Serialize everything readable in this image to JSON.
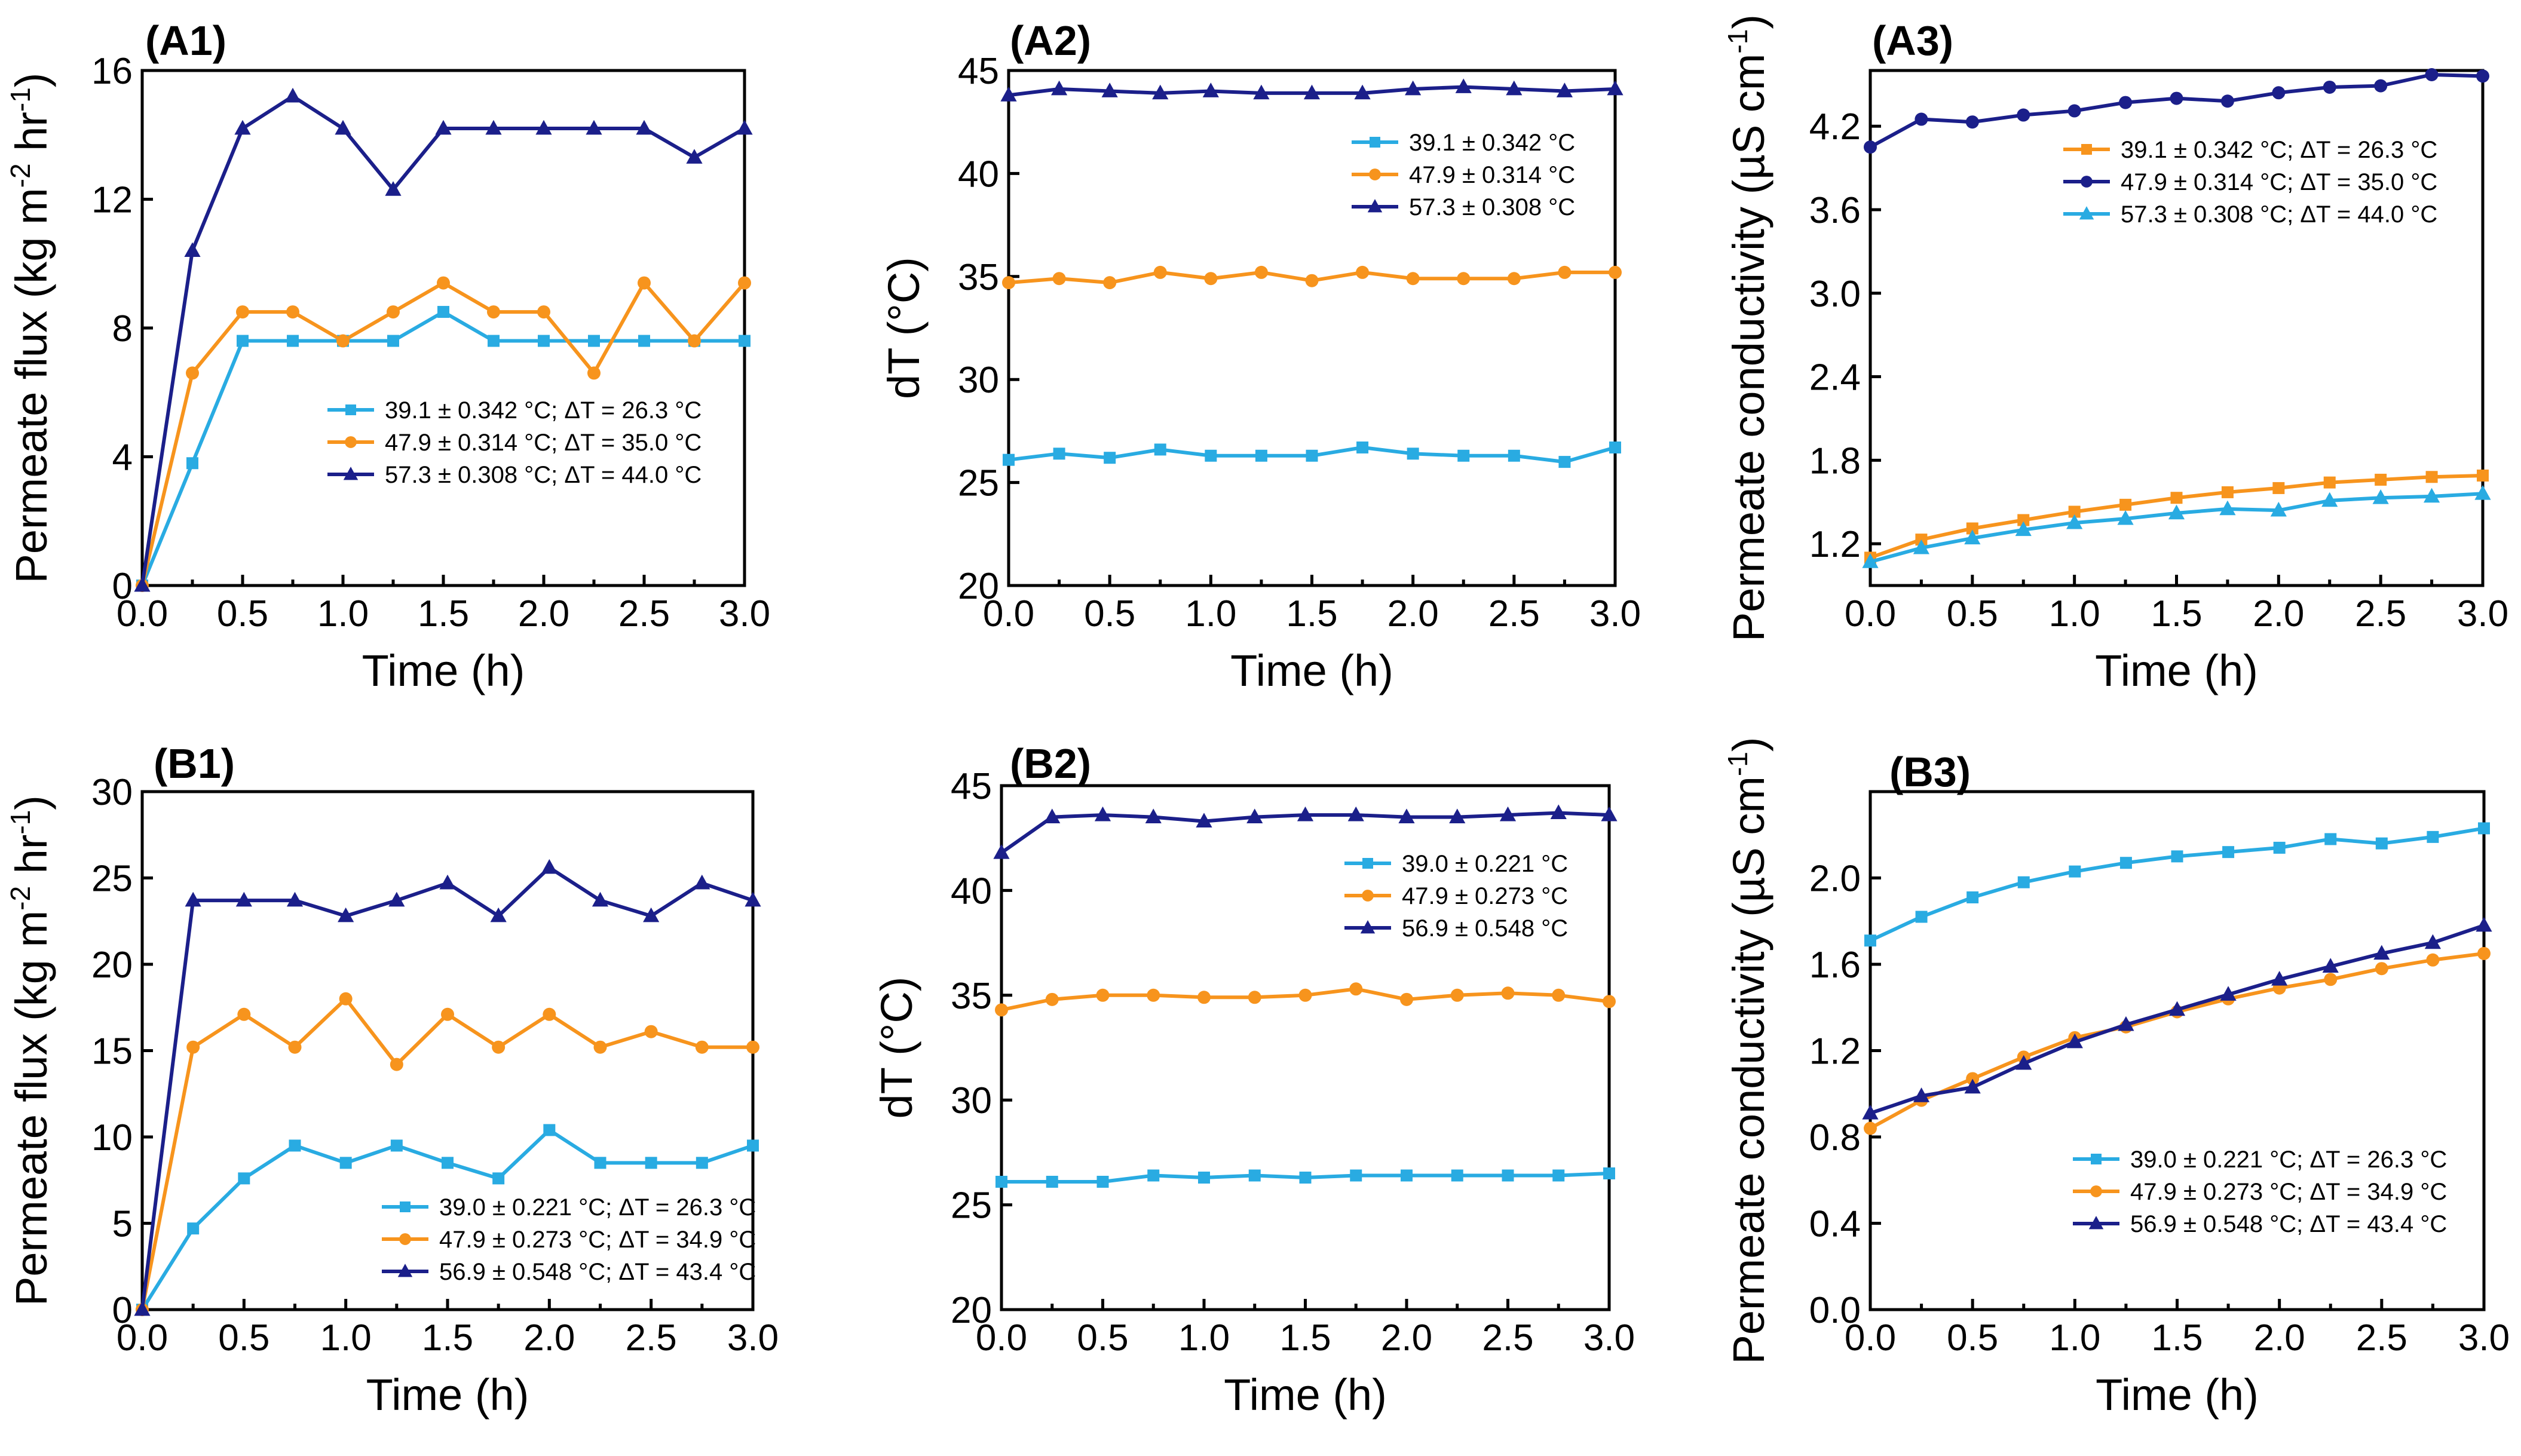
{
  "chart_data": [
    {
      "id": "A1",
      "type": "line",
      "title": "(A1)",
      "xlabel": "Time (h)",
      "ylabel": "Permeate flux (kg m-2 hr-1)",
      "ylabel_parts": [
        "Permeate flux (kg m",
        "-2",
        " hr",
        "-1",
        ")"
      ],
      "xlim": [
        0,
        3
      ],
      "ylim": [
        0,
        16
      ],
      "xticks": [
        0,
        0.5,
        1,
        1.5,
        2,
        2.5,
        3
      ],
      "xtick_labels": [
        "0.0",
        "0.5",
        "1.0",
        "1.5",
        "2.0",
        "2.5",
        "3.0"
      ],
      "yticks": [
        0,
        4,
        8,
        12,
        16
      ],
      "ytick_labels": [
        "0",
        "4",
        "8",
        "12",
        "16"
      ],
      "legend_position": "lower-right",
      "x": [
        0,
        0.25,
        0.5,
        0.75,
        1.0,
        1.25,
        1.5,
        1.75,
        2.0,
        2.25,
        2.5,
        2.75,
        3.0
      ],
      "series": [
        {
          "name": "39.1 ± 0.342 °C; ΔT = 26.3 °C",
          "color": "#29ABE2",
          "marker": "square",
          "values": [
            0,
            3.8,
            7.6,
            7.6,
            7.6,
            7.6,
            8.5,
            7.6,
            7.6,
            7.6,
            7.6,
            7.6,
            7.6
          ]
        },
        {
          "name": "47.9 ± 0.314 °C; ΔT = 35.0 °C",
          "color": "#F7941D",
          "marker": "circle",
          "values": [
            0,
            6.6,
            8.5,
            8.5,
            7.6,
            8.5,
            9.4,
            8.5,
            8.5,
            6.6,
            9.4,
            7.6,
            9.4
          ]
        },
        {
          "name": "57.3 ± 0.308 °C; ΔT = 44.0 °C",
          "color": "#1B1F8A",
          "marker": "triangle",
          "values": [
            0,
            10.4,
            14.2,
            15.2,
            14.2,
            12.3,
            14.2,
            14.2,
            14.2,
            14.2,
            14.2,
            13.3,
            14.2
          ]
        }
      ]
    },
    {
      "id": "A2",
      "type": "line",
      "title": "(A2)",
      "xlabel": "Time (h)",
      "ylabel": "dT (°C)",
      "xlim": [
        0,
        3
      ],
      "ylim": [
        20,
        45
      ],
      "xticks": [
        0,
        0.5,
        1,
        1.5,
        2,
        2.5,
        3
      ],
      "xtick_labels": [
        "0.0",
        "0.5",
        "1.0",
        "1.5",
        "2.0",
        "2.5",
        "3.0"
      ],
      "yticks": [
        20,
        25,
        30,
        35,
        40,
        45
      ],
      "ytick_labels": [
        "20",
        "25",
        "30",
        "35",
        "40",
        "45"
      ],
      "legend_position": "top-right",
      "x": [
        0,
        0.25,
        0.5,
        0.75,
        1.0,
        1.25,
        1.5,
        1.75,
        2.0,
        2.25,
        2.5,
        2.75,
        3.0
      ],
      "series": [
        {
          "name": "39.1 ± 0.342 °C",
          "color": "#29ABE2",
          "marker": "square",
          "values": [
            26.1,
            26.4,
            26.2,
            26.6,
            26.3,
            26.3,
            26.3,
            26.7,
            26.4,
            26.3,
            26.3,
            26.0,
            26.7
          ]
        },
        {
          "name": "47.9 ± 0.314 °C",
          "color": "#F7941D",
          "marker": "circle",
          "values": [
            34.7,
            34.9,
            34.7,
            35.2,
            34.9,
            35.2,
            34.8,
            35.2,
            34.9,
            34.9,
            34.9,
            35.2,
            35.2
          ]
        },
        {
          "name": "57.3 ± 0.308 °C",
          "color": "#1B1F8A",
          "marker": "triangle",
          "values": [
            43.8,
            44.1,
            44.0,
            43.9,
            44.0,
            43.9,
            43.9,
            43.9,
            44.1,
            44.2,
            44.1,
            44.0,
            44.1
          ]
        }
      ]
    },
    {
      "id": "A3",
      "type": "line",
      "title": "(A3)",
      "xlabel": "Time (h)",
      "ylabel": "Permeate conductivity (µS cm-1)",
      "ylabel_parts": [
        "Permeate conductivity (µS cm",
        "-1",
        ")"
      ],
      "xlim": [
        0,
        3
      ],
      "ylim": [
        0.9,
        4.6
      ],
      "xticks": [
        0,
        0.5,
        1,
        1.5,
        2,
        2.5,
        3
      ],
      "xtick_labels": [
        "0.0",
        "0.5",
        "1.0",
        "1.5",
        "2.0",
        "2.5",
        "3.0"
      ],
      "yticks": [
        1.2,
        1.8,
        2.4,
        3.0,
        3.6,
        4.2
      ],
      "ytick_labels": [
        "1.2",
        "1.8",
        "2.4",
        "3.0",
        "3.6",
        "4.2"
      ],
      "legend_position": "top-right",
      "x": [
        0,
        0.25,
        0.5,
        0.75,
        1.0,
        1.25,
        1.5,
        1.75,
        2.0,
        2.25,
        2.5,
        2.75,
        3.0
      ],
      "series": [
        {
          "name": "39.1 ± 0.342 °C; ΔT = 26.3 °C",
          "color": "#F7941D",
          "marker": "square",
          "values": [
            1.1,
            1.23,
            1.31,
            1.37,
            1.43,
            1.48,
            1.53,
            1.57,
            1.6,
            1.64,
            1.66,
            1.68,
            1.69
          ]
        },
        {
          "name": "47.9 ± 0.314 °C; ΔT = 35.0 °C",
          "color": "#1B1F8A",
          "marker": "circle",
          "values": [
            4.05,
            4.25,
            4.23,
            4.28,
            4.31,
            4.37,
            4.4,
            4.38,
            4.44,
            4.48,
            4.49,
            4.57,
            4.56
          ]
        },
        {
          "name": "57.3 ± 0.308 °C; ΔT = 44.0 °C",
          "color": "#29ABE2",
          "marker": "triangle",
          "values": [
            1.07,
            1.17,
            1.24,
            1.3,
            1.35,
            1.38,
            1.42,
            1.45,
            1.44,
            1.51,
            1.53,
            1.54,
            1.56
          ]
        }
      ]
    },
    {
      "id": "B1",
      "type": "line",
      "title": "(B1)",
      "xlabel": "Time (h)",
      "ylabel": "Permeate flux (kg m-2 hr-1)",
      "ylabel_parts": [
        "Permeate flux (kg m",
        "-2",
        " hr",
        "-1",
        ")"
      ],
      "xlim": [
        0,
        3
      ],
      "ylim": [
        0,
        30
      ],
      "xticks": [
        0,
        0.5,
        1,
        1.5,
        2,
        2.5,
        3
      ],
      "xtick_labels": [
        "0.0",
        "0.5",
        "1.0",
        "1.5",
        "2.0",
        "2.5",
        "3.0"
      ],
      "yticks": [
        0,
        5,
        10,
        15,
        20,
        25,
        30
      ],
      "ytick_labels": [
        "0",
        "5",
        "10",
        "15",
        "20",
        "25",
        "30"
      ],
      "legend_position": "lower-right",
      "x": [
        0,
        0.25,
        0.5,
        0.75,
        1.0,
        1.25,
        1.5,
        1.75,
        2.0,
        2.25,
        2.5,
        2.75,
        3.0
      ],
      "series": [
        {
          "name": "39.0 ± 0.221 °C; ΔT = 26.3 °C",
          "color": "#29ABE2",
          "marker": "square",
          "values": [
            0,
            4.7,
            7.6,
            9.5,
            8.5,
            9.5,
            8.5,
            7.6,
            10.4,
            8.5,
            8.5,
            8.5,
            9.5
          ]
        },
        {
          "name": "47.9 ± 0.273 °C; ΔT = 34.9 °C",
          "color": "#F7941D",
          "marker": "circle",
          "values": [
            0,
            15.2,
            17.1,
            15.2,
            18.0,
            14.2,
            17.1,
            15.2,
            17.1,
            15.2,
            16.1,
            15.2,
            15.2
          ]
        },
        {
          "name": "56.9 ± 0.548 °C; ΔT = 43.4 °C",
          "color": "#1B1F8A",
          "marker": "triangle",
          "values": [
            0,
            23.7,
            23.7,
            23.7,
            22.8,
            23.7,
            24.7,
            22.8,
            25.6,
            23.7,
            22.8,
            24.7,
            23.7
          ]
        }
      ]
    },
    {
      "id": "B2",
      "type": "line",
      "title": "(B2)",
      "xlabel": "Time (h)",
      "ylabel": "dT (°C)",
      "xlim": [
        0,
        3
      ],
      "ylim": [
        20,
        45
      ],
      "xticks": [
        0,
        0.5,
        1,
        1.5,
        2,
        2.5,
        3
      ],
      "xtick_labels": [
        "0.0",
        "0.5",
        "1.0",
        "1.5",
        "2.0",
        "2.5",
        "3.0"
      ],
      "yticks": [
        20,
        25,
        30,
        35,
        40,
        45
      ],
      "ytick_labels": [
        "20",
        "25",
        "30",
        "35",
        "40",
        "45"
      ],
      "legend_position": "top-right",
      "x": [
        0,
        0.25,
        0.5,
        0.75,
        1.0,
        1.25,
        1.5,
        1.75,
        2.0,
        2.25,
        2.5,
        2.75,
        3.0
      ],
      "series": [
        {
          "name": "39.0 ± 0.221 °C",
          "color": "#29ABE2",
          "marker": "square",
          "values": [
            26.1,
            26.1,
            26.1,
            26.4,
            26.3,
            26.4,
            26.3,
            26.4,
            26.4,
            26.4,
            26.4,
            26.4,
            26.5
          ]
        },
        {
          "name": "47.9 ± 0.273 °C",
          "color": "#F7941D",
          "marker": "circle",
          "values": [
            34.3,
            34.8,
            35.0,
            35.0,
            34.9,
            34.9,
            35.0,
            35.3,
            34.8,
            35.0,
            35.1,
            35.0,
            34.7
          ]
        },
        {
          "name": "56.9 ± 0.548 °C",
          "color": "#1B1F8A",
          "marker": "triangle",
          "values": [
            41.8,
            43.5,
            43.6,
            43.5,
            43.3,
            43.5,
            43.6,
            43.6,
            43.5,
            43.5,
            43.6,
            43.7,
            43.6
          ]
        }
      ]
    },
    {
      "id": "B3",
      "type": "line",
      "title": "(B3)",
      "xlabel": "Time (h)",
      "ylabel": "Permeate conductivity (µS cm-1)",
      "ylabel_parts": [
        "Permeate conductivity (µS cm",
        "-1",
        ")"
      ],
      "xlim": [
        0,
        3
      ],
      "ylim": [
        0,
        2.4
      ],
      "xticks": [
        0,
        0.5,
        1,
        1.5,
        2,
        2.5,
        3
      ],
      "xtick_labels": [
        "0.0",
        "0.5",
        "1.0",
        "1.5",
        "2.0",
        "2.5",
        "3.0"
      ],
      "yticks": [
        0,
        0.4,
        0.8,
        1.2,
        1.6,
        2.0
      ],
      "ytick_labels": [
        "0.0",
        "0.4",
        "0.8",
        "1.2",
        "1.6",
        "2.0"
      ],
      "legend_position": "lower-right",
      "x": [
        0,
        0.25,
        0.5,
        0.75,
        1.0,
        1.25,
        1.5,
        1.75,
        2.0,
        2.25,
        2.5,
        2.75,
        3.0
      ],
      "series": [
        {
          "name": "39.0 ± 0.221 °C; ΔT = 26.3 °C",
          "color": "#29ABE2",
          "marker": "square",
          "values": [
            1.71,
            1.82,
            1.91,
            1.98,
            2.03,
            2.07,
            2.1,
            2.12,
            2.14,
            2.18,
            2.16,
            2.19,
            2.23
          ]
        },
        {
          "name": "47.9 ± 0.273 °C; ΔT = 34.9 °C",
          "color": "#F7941D",
          "marker": "circle",
          "values": [
            0.84,
            0.97,
            1.07,
            1.17,
            1.26,
            1.31,
            1.38,
            1.44,
            1.49,
            1.53,
            1.58,
            1.62,
            1.65
          ]
        },
        {
          "name": "56.9 ± 0.548 °C; ΔT = 43.4 °C",
          "color": "#1B1F8A",
          "marker": "triangle",
          "values": [
            0.91,
            0.99,
            1.03,
            1.14,
            1.24,
            1.32,
            1.39,
            1.46,
            1.53,
            1.59,
            1.65,
            1.7,
            1.78
          ]
        }
      ]
    }
  ]
}
